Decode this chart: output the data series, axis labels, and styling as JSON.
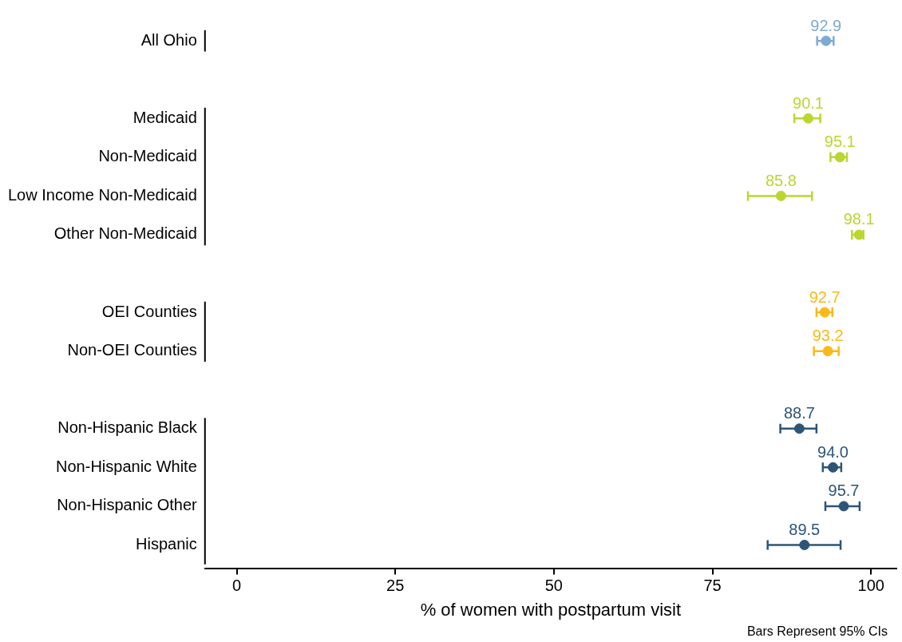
{
  "chart_data": {
    "type": "scatter",
    "orientation": "horizontal",
    "xlabel": "% of women with postpartum visit",
    "annotations": [
      "Bars Represent 95% CIs"
    ],
    "categories": [
      "All Ohio",
      null,
      "Medicaid",
      "Non-Medicaid",
      "Low Income Non-Medicaid",
      "Other Non-Medicaid",
      null,
      "OEI Counties",
      "Non-OEI Counties",
      null,
      "Non-Hispanic Black",
      "Non-Hispanic White",
      "Non-Hispanic Other",
      "Hispanic"
    ],
    "series": [
      {
        "color": "#7eaad4",
        "values": [
          92.9,
          null,
          null,
          null,
          null,
          null,
          null,
          null,
          null,
          null,
          null,
          null,
          null,
          null
        ],
        "errors": [
          [
            91.5,
            94.1
          ],
          null,
          null,
          null,
          null,
          null,
          null,
          null,
          null,
          null,
          null,
          null,
          null,
          null
        ],
        "value_labels": [
          "92.9",
          null,
          null,
          null,
          null,
          null,
          null,
          null,
          null,
          null,
          null,
          null,
          null,
          null
        ]
      },
      {
        "color": "#bbd631",
        "values": [
          null,
          null,
          90.1,
          95.1,
          85.8,
          98.1,
          null,
          null,
          null,
          null,
          null,
          null,
          null,
          null
        ],
        "errors": [
          null,
          null,
          [
            87.9,
            92.0
          ],
          [
            93.6,
            96.2
          ],
          [
            80.6,
            90.7
          ],
          [
            97.0,
            98.8
          ],
          null,
          null,
          null,
          null,
          null,
          null,
          null,
          null
        ],
        "value_labels": [
          null,
          null,
          "90.1",
          "95.1",
          "85.8",
          "98.1",
          null,
          null,
          null,
          null,
          null,
          null,
          null,
          null
        ]
      },
      {
        "color": "#fbb917",
        "values": [
          null,
          null,
          null,
          null,
          null,
          null,
          null,
          92.7,
          93.2,
          null,
          null,
          null,
          null,
          null
        ],
        "errors": [
          null,
          null,
          null,
          null,
          null,
          null,
          null,
          [
            91.4,
            93.9
          ],
          [
            91.0,
            94.9
          ],
          null,
          null,
          null,
          null,
          null
        ],
        "value_labels": [
          null,
          null,
          null,
          null,
          null,
          null,
          null,
          "92.7",
          "93.2",
          null,
          null,
          null,
          null,
          null
        ]
      },
      {
        "color": "#2d5577",
        "values": [
          null,
          null,
          null,
          null,
          null,
          null,
          null,
          null,
          null,
          null,
          88.7,
          94.0,
          95.7,
          89.5
        ],
        "errors": [
          null,
          null,
          null,
          null,
          null,
          null,
          null,
          null,
          null,
          null,
          [
            85.7,
            91.4
          ],
          [
            92.4,
            95.3
          ],
          [
            92.8,
            98.2
          ],
          [
            83.7,
            95.2
          ]
        ],
        "value_labels": [
          null,
          null,
          null,
          null,
          null,
          null,
          null,
          null,
          null,
          null,
          "88.7",
          "94.0",
          "95.7",
          "89.5"
        ]
      }
    ],
    "xlim": [
      -5,
      104
    ],
    "xticks": [
      0,
      25,
      50,
      75,
      100
    ],
    "grid": false,
    "legend": false,
    "marker": "circle"
  }
}
